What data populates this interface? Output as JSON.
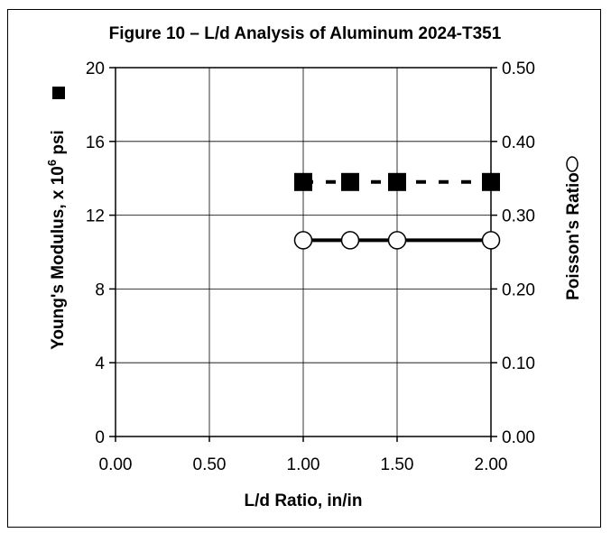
{
  "chart_data": {
    "type": "scatter",
    "title": "Figure 10 – L/d Analysis of Aluminum 2024-T351",
    "xlabel": "L/d Ratio, in/in",
    "ylabel_left": {
      "text": "Young's Modulus, x 10",
      "superscript": "6",
      "unit": " psi"
    },
    "ylabel_right": "Poisson's Ratio",
    "xlim": [
      0,
      2
    ],
    "ylim_left": [
      0,
      20
    ],
    "ylim_right": [
      0,
      0.5
    ],
    "x_ticks": [
      "0.00",
      "0.50",
      "1.00",
      "1.50",
      "2.00"
    ],
    "y_left_ticks": [
      "0",
      "4",
      "8",
      "12",
      "16",
      "20"
    ],
    "y_right_ticks": [
      "0.00",
      "0.10",
      "0.20",
      "0.30",
      "0.40",
      "0.50"
    ],
    "grid": true,
    "series": [
      {
        "marker": "square-filled",
        "axis": "left",
        "line_style": "dashed",
        "color": "#000000",
        "x": [
          1.0,
          1.25,
          1.5,
          2.0
        ],
        "y": [
          13.8,
          13.8,
          13.8,
          13.8
        ]
      },
      {
        "marker": "circle-open",
        "axis": "right",
        "line_style": "solid",
        "color": "#000000",
        "x": [
          1.0,
          1.25,
          1.5,
          2.0
        ],
        "y": [
          0.266,
          0.266,
          0.266,
          0.266
        ]
      }
    ]
  }
}
